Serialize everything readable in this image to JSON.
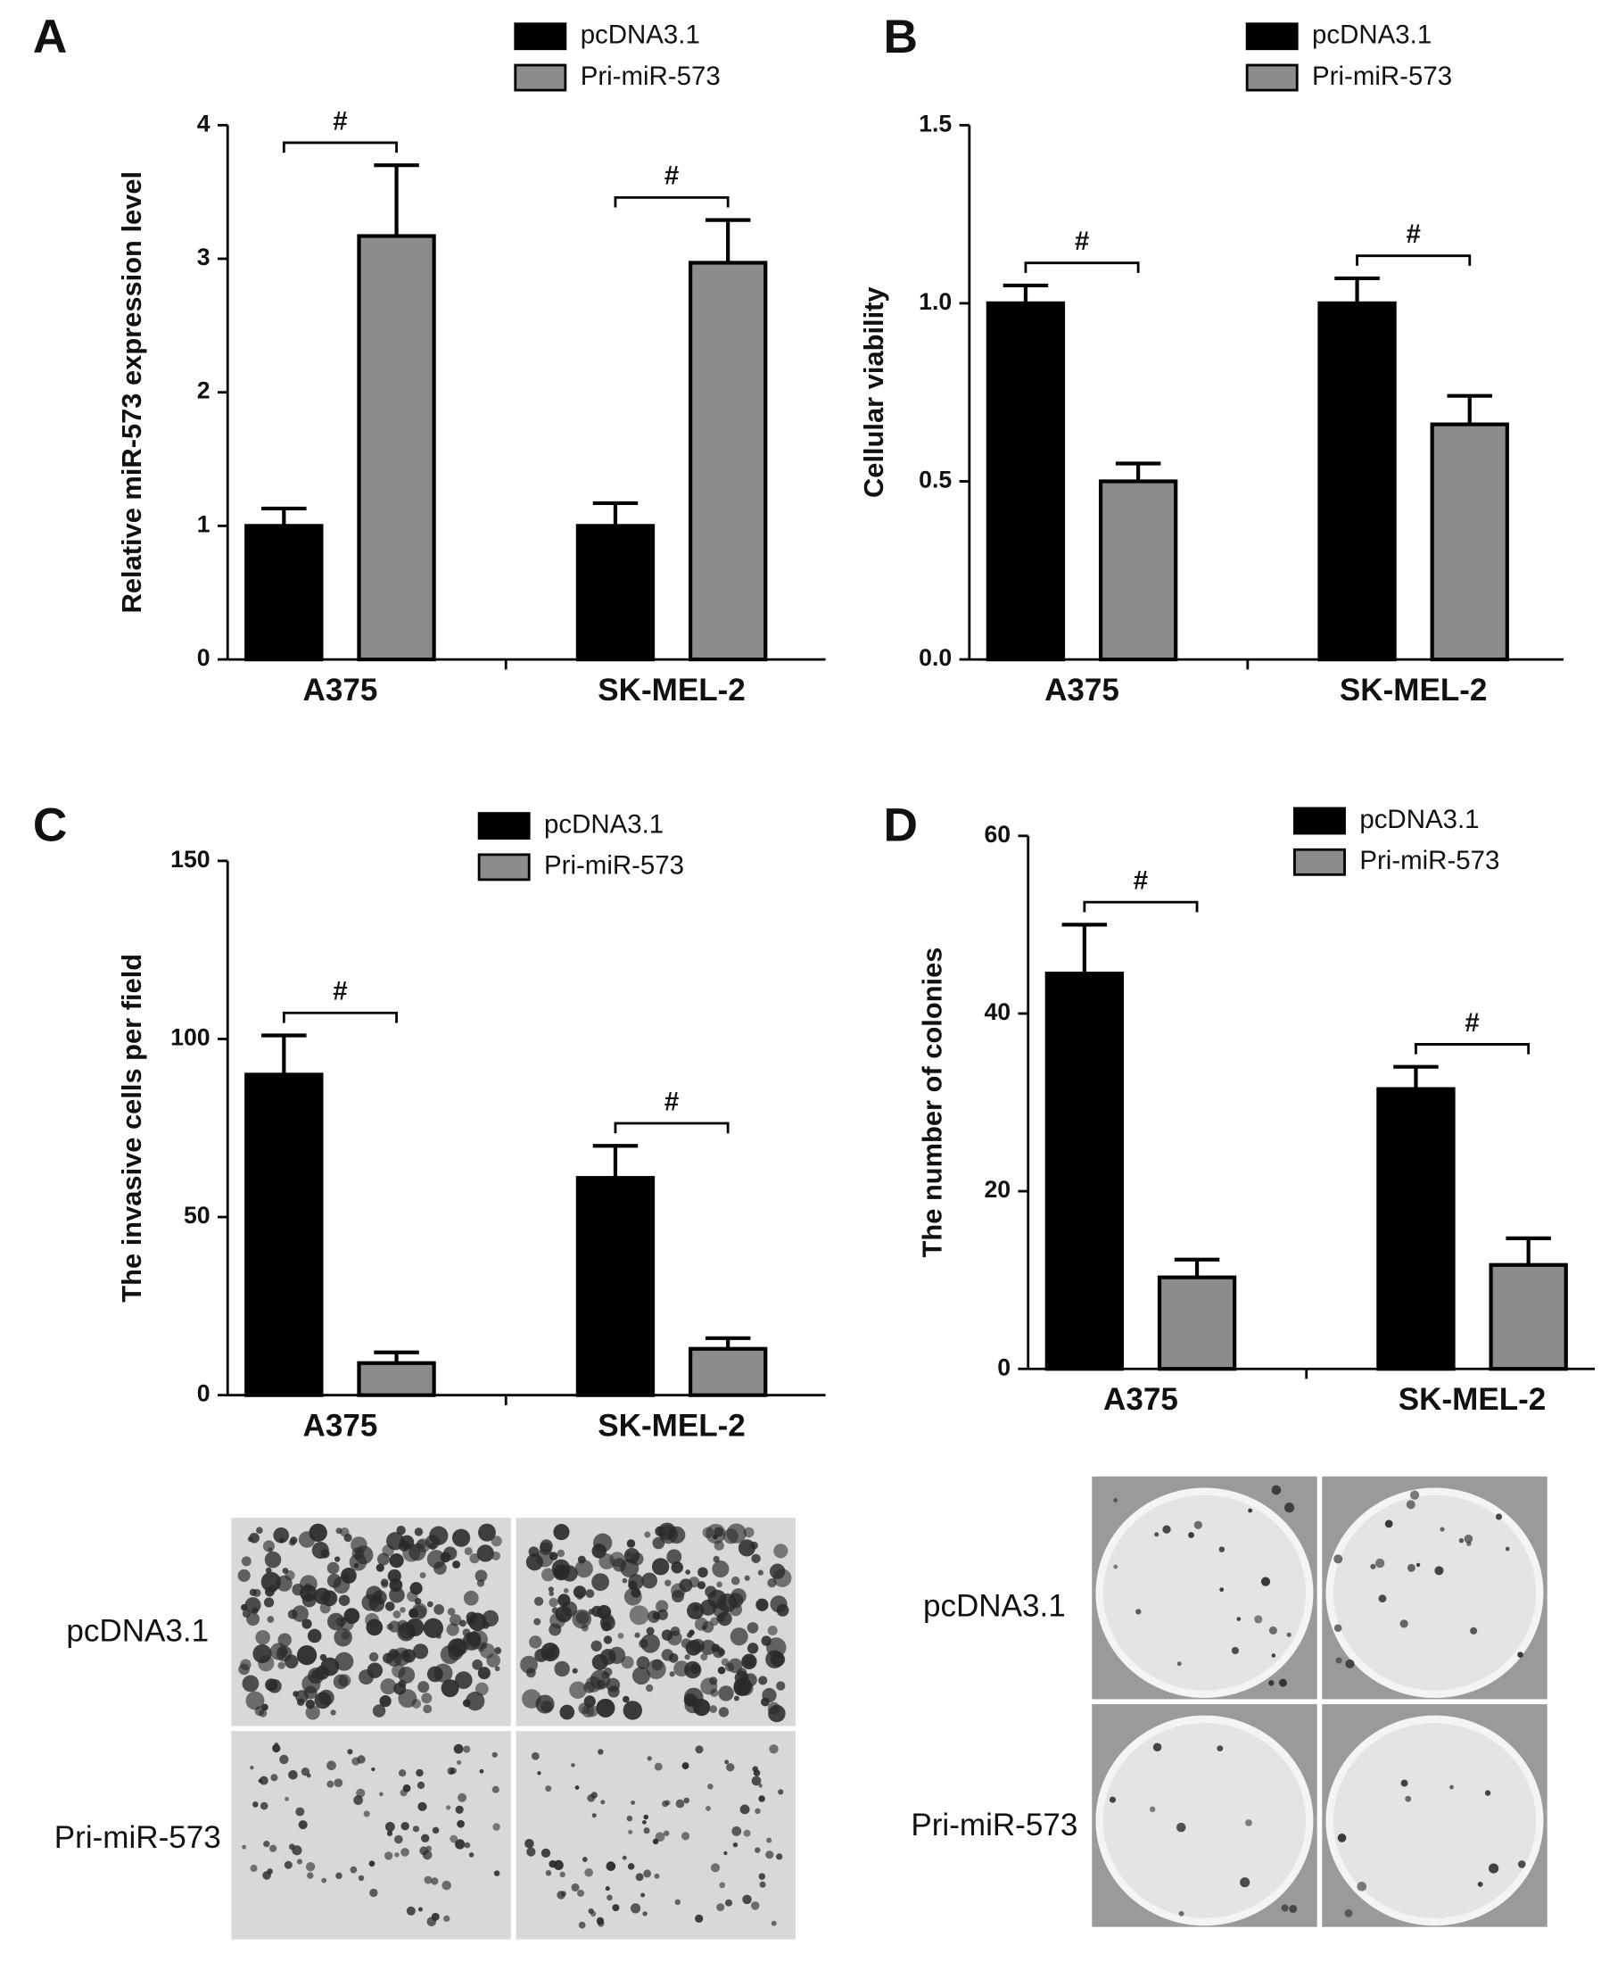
{
  "chart_data": [
    {
      "type": "bar",
      "panel_label": "A",
      "ylabel": "Relative miR-573 expression level",
      "categories": [
        "A375",
        "SK-MEL-2"
      ],
      "series": [
        {
          "name": "pcDNA3.1",
          "color": "#000000",
          "values": [
            1.0,
            1.0
          ],
          "errors": [
            0.13,
            0.17
          ]
        },
        {
          "name": "Pri-miR-573",
          "color": "#8c8c8c",
          "values": [
            3.17,
            2.97
          ],
          "errors": [
            0.53,
            0.32
          ]
        }
      ],
      "annotations": [
        "#",
        "#"
      ],
      "ylim": [
        0,
        4
      ],
      "yticks": [
        0,
        1,
        2,
        3,
        4
      ]
    },
    {
      "type": "bar",
      "panel_label": "B",
      "ylabel": "Cellular viability",
      "categories": [
        "A375",
        "SK-MEL-2"
      ],
      "series": [
        {
          "name": "pcDNA3.1",
          "color": "#000000",
          "values": [
            1.0,
            1.0
          ],
          "errors": [
            0.05,
            0.07
          ]
        },
        {
          "name": "Pri-miR-573",
          "color": "#8c8c8c",
          "values": [
            0.5,
            0.66
          ],
          "errors": [
            0.05,
            0.08
          ]
        }
      ],
      "annotations": [
        "#",
        "#"
      ],
      "ylim": [
        0,
        1.5
      ],
      "yticks": [
        {
          "value": 0,
          "label": "0.0"
        },
        0.5,
        {
          "value": 1,
          "label": "1.0"
        },
        1.5
      ]
    },
    {
      "type": "bar",
      "panel_label": "C",
      "ylabel": "The invasive cells per field",
      "categories": [
        "A375",
        "SK-MEL-2"
      ],
      "series": [
        {
          "name": "pcDNA3.1",
          "color": "#000000",
          "values": [
            90,
            61
          ],
          "errors": [
            11,
            9
          ]
        },
        {
          "name": "Pri-miR-573",
          "color": "#8c8c8c",
          "values": [
            9,
            13
          ],
          "errors": [
            3,
            3
          ]
        }
      ],
      "annotations": [
        "#",
        "#"
      ],
      "ylim": [
        0,
        150
      ],
      "yticks": [
        0,
        50,
        100,
        150
      ]
    },
    {
      "type": "bar",
      "panel_label": "D",
      "ylabel": "The number of colonies",
      "categories": [
        "A375",
        "SK-MEL-2"
      ],
      "series": [
        {
          "name": "pcDNA3.1",
          "color": "#000000",
          "values": [
            44.5,
            31.5
          ],
          "errors": [
            5.5,
            2.5
          ]
        },
        {
          "name": "Pri-miR-573",
          "color": "#8c8c8c",
          "values": [
            10.3,
            11.7
          ],
          "errors": [
            2,
            3
          ]
        }
      ],
      "annotations": [
        "#",
        "#"
      ],
      "ylim": [
        0,
        60
      ],
      "yticks": [
        0,
        20,
        40,
        60
      ]
    }
  ],
  "photo_panels": [
    {
      "row_labels": [
        "pcDNA3.1",
        "Pri-miR-573"
      ]
    },
    {
      "row_labels": [
        "pcDNA3.1",
        "Pri-miR-573"
      ]
    }
  ]
}
